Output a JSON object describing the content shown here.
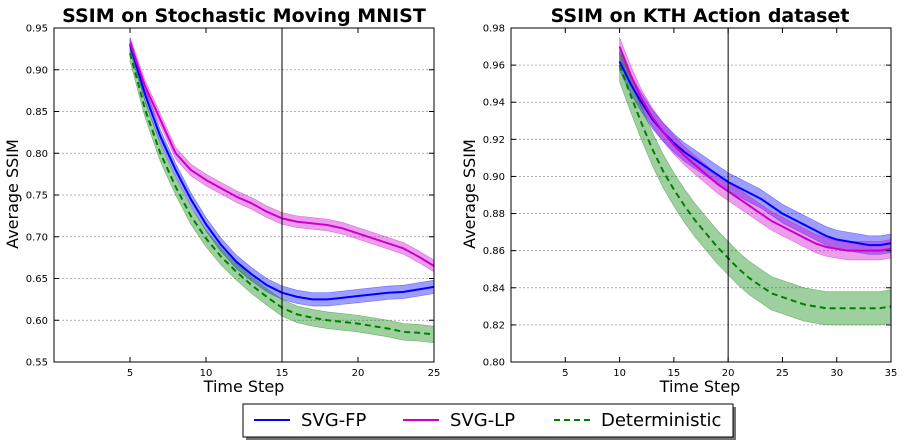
{
  "chart_data": [
    {
      "type": "line",
      "title": "SSIM on Stochastic Moving MNIST",
      "xlabel": "Time Step",
      "ylabel": "Average SSIM",
      "xlim": [
        0,
        25
      ],
      "ylim": [
        0.55,
        0.95
      ],
      "xticks": [
        5,
        10,
        15,
        20,
        25
      ],
      "yticks": [
        0.55,
        0.6,
        0.65,
        0.7,
        0.75,
        0.8,
        0.85,
        0.9,
        0.95
      ],
      "ytick_labels": [
        "0.55",
        "0.60",
        "0.65",
        "0.70",
        "0.75",
        "0.80",
        "0.85",
        "0.90",
        "0.95"
      ],
      "vline_x": 15,
      "grid": "horizontal-dotted",
      "x": [
        5,
        6,
        7,
        8,
        9,
        10,
        11,
        12,
        13,
        14,
        15,
        16,
        17,
        18,
        19,
        20,
        21,
        22,
        23,
        24,
        25
      ],
      "series": [
        {
          "name": "SVG-FP",
          "color": "#0000ff",
          "dash": "solid",
          "values": [
            0.93,
            0.87,
            0.82,
            0.78,
            0.745,
            0.715,
            0.69,
            0.67,
            0.655,
            0.642,
            0.633,
            0.628,
            0.625,
            0.625,
            0.627,
            0.629,
            0.631,
            0.633,
            0.634,
            0.637,
            0.64
          ],
          "band": 0.008
        },
        {
          "name": "SVG-LP",
          "color": "#cc00cc",
          "dash": "solid",
          "values": [
            0.932,
            0.88,
            0.84,
            0.8,
            0.78,
            0.768,
            0.758,
            0.748,
            0.74,
            0.73,
            0.722,
            0.718,
            0.716,
            0.714,
            0.71,
            0.704,
            0.698,
            0.692,
            0.686,
            0.676,
            0.665
          ],
          "band": 0.007
        },
        {
          "name": "Deterministic",
          "color": "#008000",
          "dash": "dashed",
          "values": [
            0.92,
            0.852,
            0.8,
            0.76,
            0.725,
            0.698,
            0.676,
            0.658,
            0.642,
            0.628,
            0.615,
            0.607,
            0.603,
            0.6,
            0.598,
            0.596,
            0.593,
            0.59,
            0.586,
            0.585,
            0.583
          ],
          "band": 0.01
        }
      ]
    },
    {
      "type": "line",
      "title": "SSIM on KTH Action dataset",
      "xlabel": "Time Step",
      "ylabel": "Average SSIM",
      "xlim": [
        0,
        35
      ],
      "ylim": [
        0.8,
        0.98
      ],
      "xticks": [
        5,
        10,
        15,
        20,
        25,
        30,
        35
      ],
      "yticks": [
        0.8,
        0.82,
        0.84,
        0.86,
        0.88,
        0.9,
        0.92,
        0.94,
        0.96,
        0.98
      ],
      "ytick_labels": [
        "0.80",
        "0.82",
        "0.84",
        "0.86",
        "0.88",
        "0.90",
        "0.92",
        "0.94",
        "0.96",
        "0.98"
      ],
      "vline_x": 20,
      "grid": "horizontal-dotted",
      "x": [
        10,
        11,
        12,
        13,
        14,
        15,
        16,
        17,
        18,
        19,
        20,
        21,
        22,
        23,
        24,
        25,
        26,
        27,
        28,
        29,
        30,
        31,
        32,
        33,
        34,
        35
      ],
      "series": [
        {
          "name": "SVG-FP",
          "color": "#0000ff",
          "dash": "solid",
          "values": [
            0.962,
            0.95,
            0.94,
            0.931,
            0.924,
            0.918,
            0.913,
            0.909,
            0.905,
            0.901,
            0.897,
            0.894,
            0.891,
            0.888,
            0.884,
            0.88,
            0.877,
            0.874,
            0.871,
            0.868,
            0.866,
            0.865,
            0.864,
            0.863,
            0.863,
            0.864
          ],
          "band": 0.005
        },
        {
          "name": "SVG-LP",
          "color": "#cc00cc",
          "dash": "solid",
          "values": [
            0.97,
            0.955,
            0.942,
            0.932,
            0.924,
            0.917,
            0.911,
            0.906,
            0.901,
            0.896,
            0.892,
            0.888,
            0.884,
            0.88,
            0.876,
            0.873,
            0.87,
            0.867,
            0.864,
            0.862,
            0.861,
            0.86,
            0.86,
            0.86,
            0.86,
            0.861
          ],
          "band": 0.005
        },
        {
          "name": "Deterministic",
          "color": "#008000",
          "dash": "dashed",
          "values": [
            0.96,
            0.944,
            0.929,
            0.915,
            0.903,
            0.893,
            0.884,
            0.876,
            0.869,
            0.862,
            0.856,
            0.85,
            0.845,
            0.841,
            0.837,
            0.835,
            0.833,
            0.831,
            0.83,
            0.829,
            0.829,
            0.829,
            0.829,
            0.829,
            0.829,
            0.83
          ],
          "band": 0.009
        }
      ]
    }
  ],
  "legend": {
    "position": "bottom-center",
    "items": [
      {
        "name": "SVG-FP",
        "color": "#0000ff",
        "dash": "solid"
      },
      {
        "name": "SVG-LP",
        "color": "#cc00cc",
        "dash": "solid"
      },
      {
        "name": "Deterministic",
        "color": "#008000",
        "dash": "dashed"
      }
    ]
  }
}
